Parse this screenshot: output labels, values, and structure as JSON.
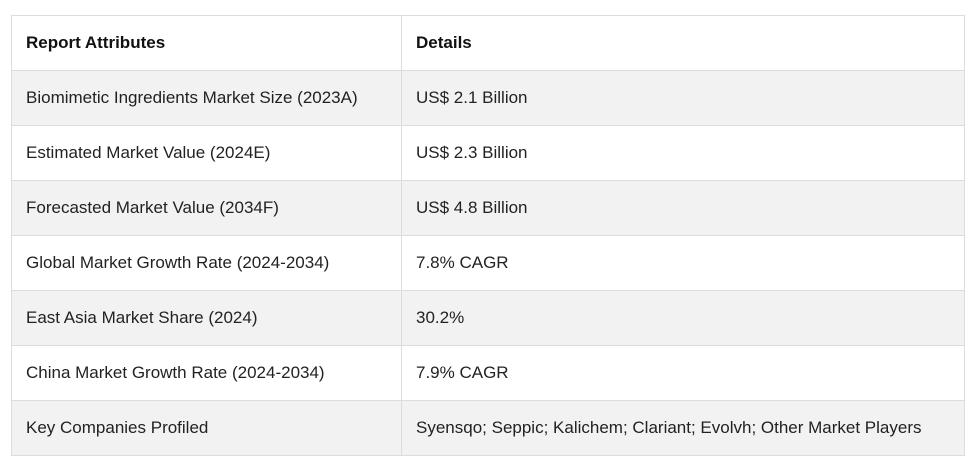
{
  "table": {
    "headers": [
      "Report Attributes",
      "Details"
    ],
    "rows": [
      [
        "Biomimetic Ingredients Market Size (2023A)",
        "US$ 2.1 Billion"
      ],
      [
        "Estimated Market Value (2024E)",
        "US$ 2.3 Billion"
      ],
      [
        "Forecasted Market Value (2034F)",
        "US$ 4.8 Billion"
      ],
      [
        "Global Market Growth Rate (2024-2034)",
        "7.8% CAGR"
      ],
      [
        "East Asia Market Share (2024)",
        "30.2%"
      ],
      [
        "China Market Growth Rate (2024-2034)",
        "7.9% CAGR"
      ],
      [
        "Key Companies Profiled",
        "Syensqo; Seppic; Kalichem; Clariant; Evolvh; Other Market Players"
      ]
    ]
  }
}
